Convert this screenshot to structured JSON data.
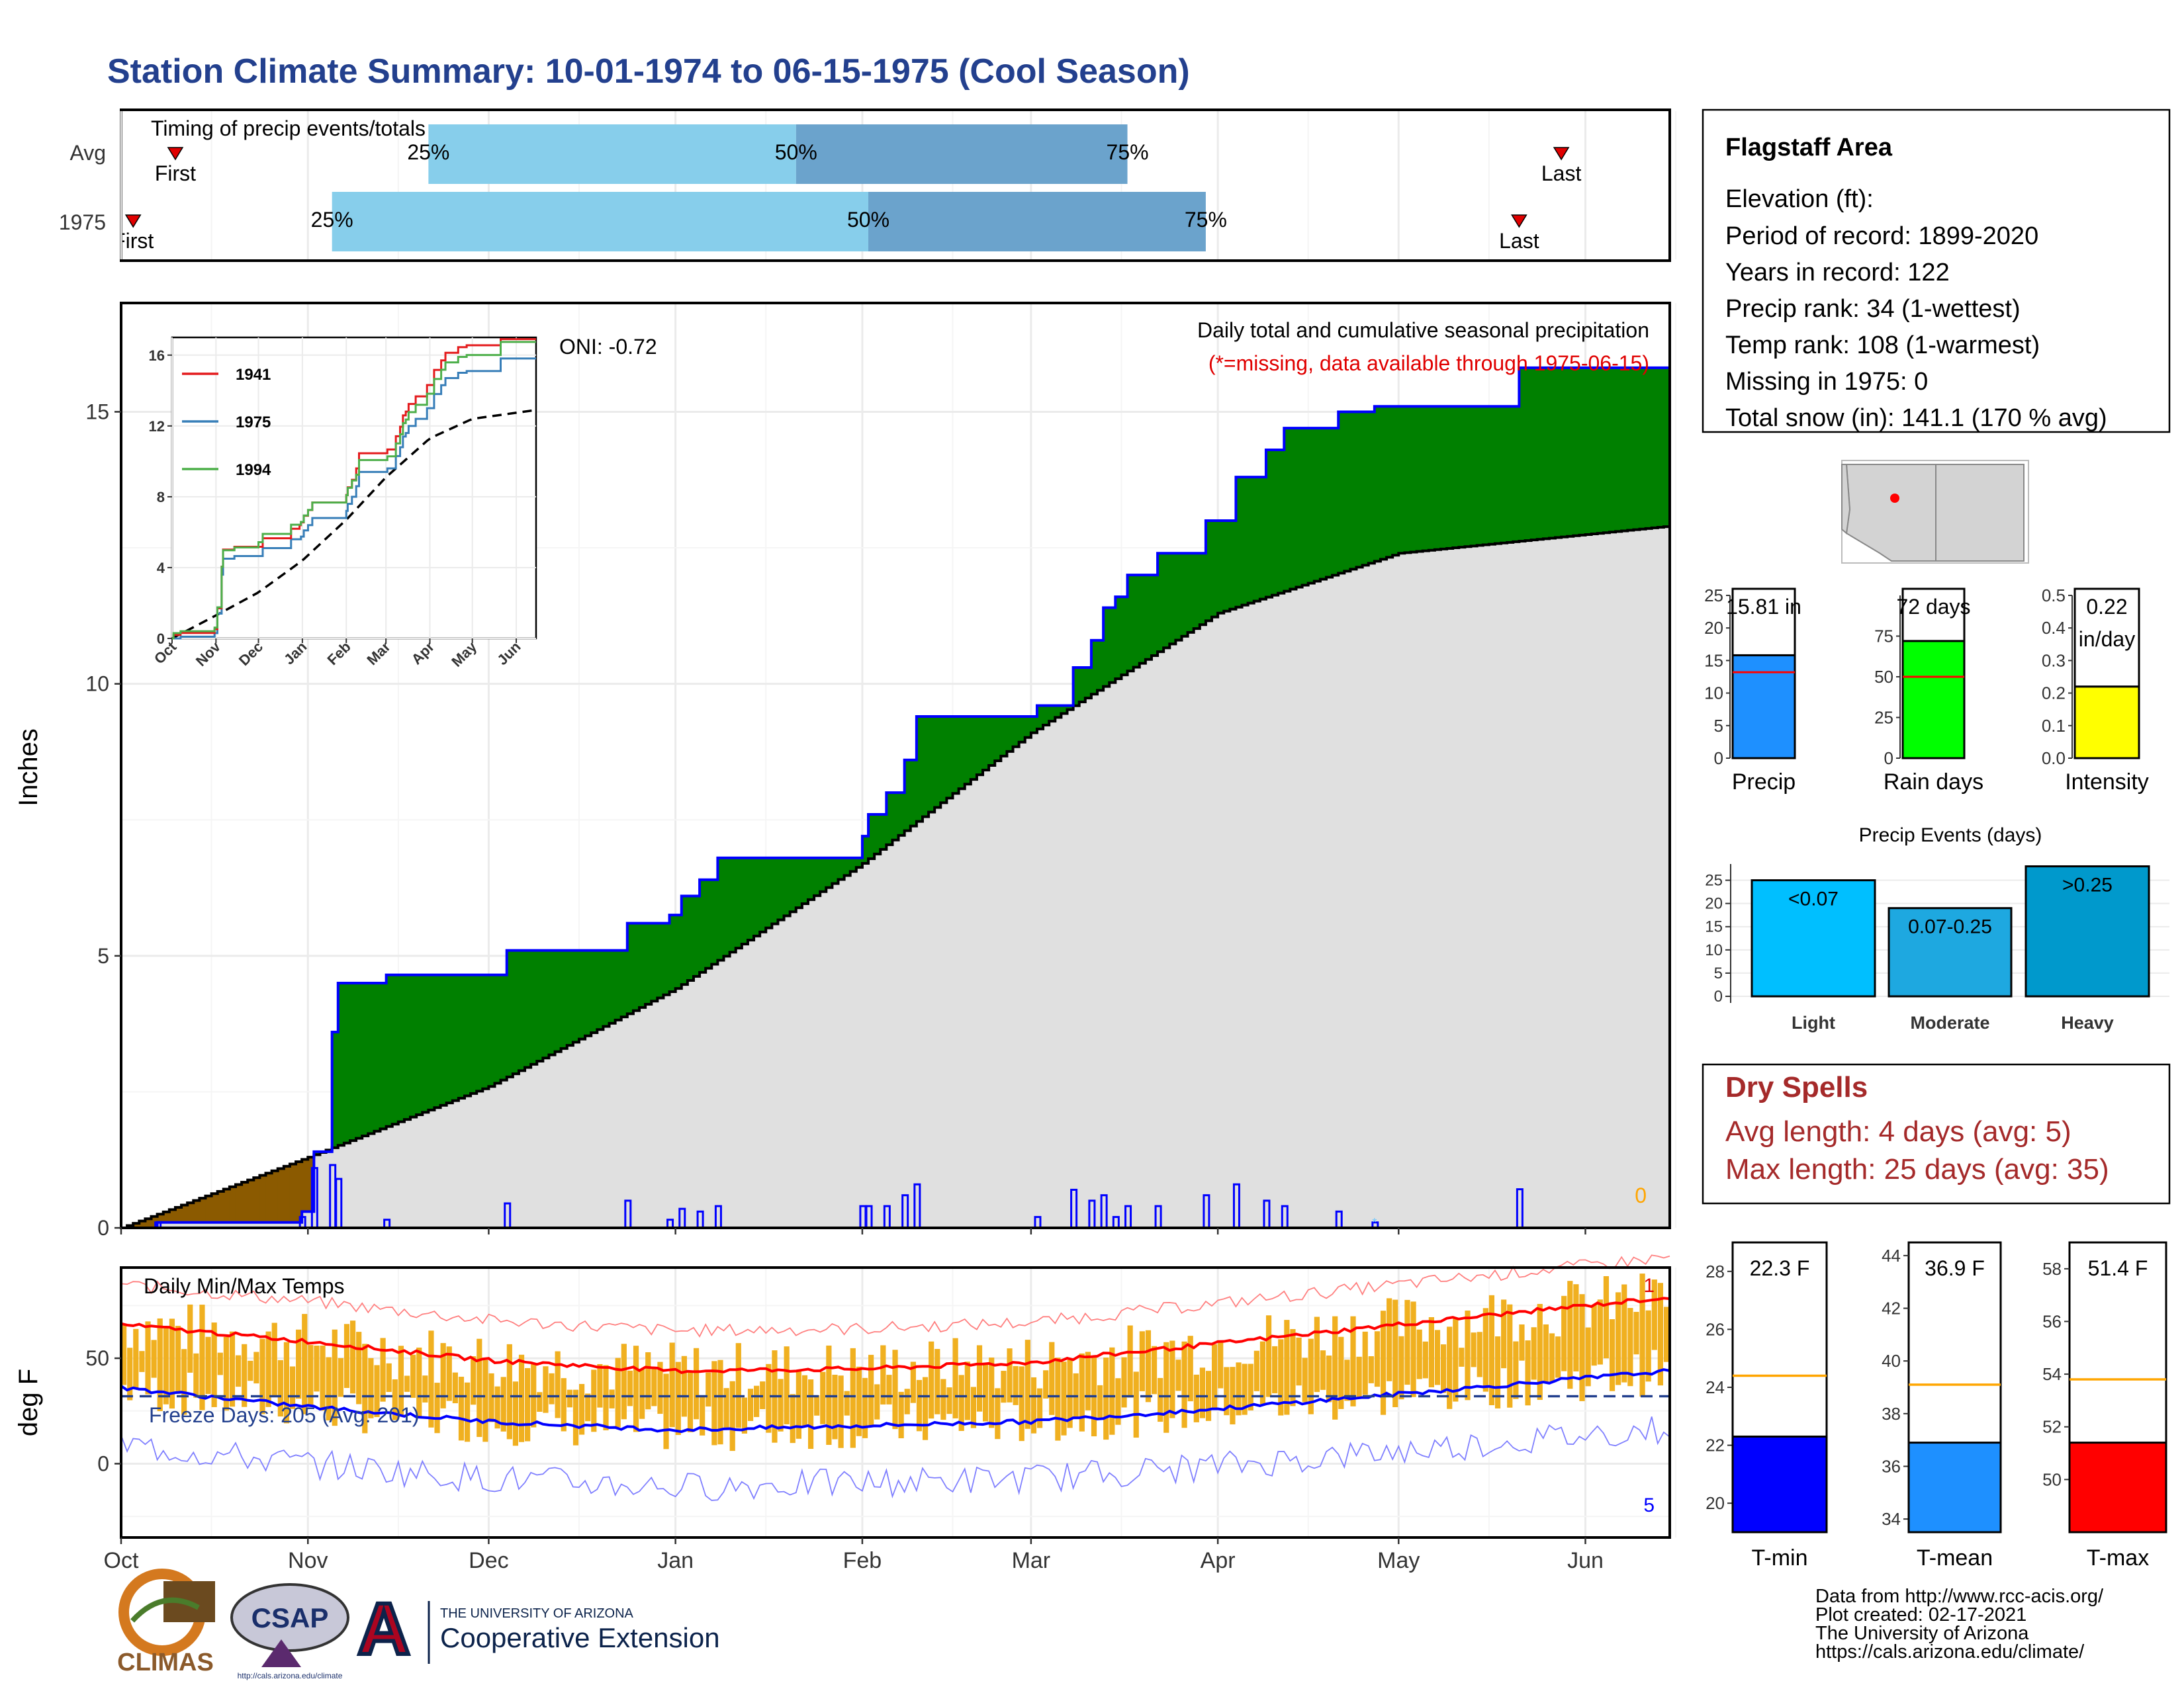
{
  "title": "Station Climate Summary: 10-01-1974 to 06-15-1975 (Cool Season)",
  "colors": {
    "title": "#23408e",
    "cum_fill": "#008000",
    "cum_line": "#0000ff",
    "avg_fill": "#e0e0e0",
    "deficit_fill": "#8b5a00",
    "p25": "#87ceeb",
    "p50": "#6ba3cc",
    "marker": "#e00000",
    "temp_bars": "#f0b020",
    "tmax_avg": "#ff0000",
    "tmin_avg": "#0000ff",
    "dry_spells": "#a52a2a"
  },
  "timing": {
    "label": "Timing of precip events/totals",
    "rows": [
      {
        "name": "Avg",
        "first_label": "First",
        "last_label": "Last",
        "first": "Oct 10",
        "p25": "Nov 21",
        "p50": "Jan 21",
        "p75": "Mar 17",
        "last": "May 28",
        "p25_label": "25%",
        "p50_label": "50%",
        "p75_label": "75%"
      },
      {
        "name": "1975",
        "first_label": "First",
        "last_label": "Last",
        "first": "Oct 3",
        "p25": "Nov 5",
        "p50": "Feb 2",
        "p75": "Mar 30",
        "last": "May 21",
        "p25_label": "25%",
        "p50_label": "50%",
        "p75_label": "75%"
      }
    ]
  },
  "main": {
    "ylabel": "Inches",
    "oni_label": "ONI: -0.72",
    "legend_title": "Daily total and cumulative seasonal precipitation",
    "missing_note": "(*=missing, data available through 1975-06-15)",
    "missing_count": "0",
    "y_ticks": [
      "0",
      "5",
      "10",
      "15"
    ]
  },
  "inset": {
    "y_ticks": [
      "0",
      "4",
      "8",
      "12",
      "16"
    ],
    "x_ticks": [
      "Oct",
      "Nov",
      "Dec",
      "Jan",
      "Feb",
      "Mar",
      "Apr",
      "May",
      "Jun"
    ],
    "legend": [
      {
        "name": "1941",
        "color": "#e41a1c"
      },
      {
        "name": "1975",
        "color": "#377eb8"
      },
      {
        "name": "1994",
        "color": "#4daf4a"
      }
    ]
  },
  "temps": {
    "ylabel": "deg F",
    "title": "Daily Min/Max Temps",
    "freeze_label": "Freeze Days: 205 (Avg: 201)",
    "y_ticks": [
      "0",
      "50"
    ],
    "record_high_count": "1",
    "record_low_count": "5"
  },
  "x_months": [
    "Oct",
    "Nov",
    "Dec",
    "Jan",
    "Feb",
    "Mar",
    "Apr",
    "May",
    "Jun"
  ],
  "info": {
    "station": "Flagstaff Area",
    "lines": [
      "Elevation (ft):",
      "Period of record: 1899-2020",
      "Years in record: 122",
      "Precip rank: 34 (1-wettest)",
      "Temp rank: 108 (1-warmest)",
      "Missing in 1975: 0",
      "Total snow (in): 141.1 (170 % avg)"
    ]
  },
  "mini_bars": [
    {
      "name": "Precip",
      "label": "15.81 in",
      "value": 15.81,
      "avg": 13.2,
      "ymax": 25,
      "ticks": [
        "0",
        "5",
        "10",
        "15",
        "20",
        "25"
      ],
      "color": "#1e90ff"
    },
    {
      "name": "Rain days",
      "label": "72 days",
      "value": 72,
      "avg": 50,
      "ymax": 100,
      "ticks": [
        "0",
        "25",
        "50",
        "75"
      ],
      "color": "#00ff00"
    },
    {
      "name": "Intensity",
      "label": "0.22",
      "label2": "in/day",
      "value": 0.22,
      "avg": 0.26,
      "ymax": 0.5,
      "ticks": [
        "0.0",
        "0.1",
        "0.2",
        "0.3",
        "0.4",
        "0.5"
      ],
      "color": "#ffff00"
    }
  ],
  "events": {
    "title": "Precip Events (days)",
    "ticks": [
      "0",
      "5",
      "10",
      "15",
      "20",
      "25"
    ],
    "bars": [
      {
        "name": "Light",
        "label": "<0.07",
        "value": 25,
        "color": "#00bfff"
      },
      {
        "name": "Moderate",
        "label": "0.07-0.25",
        "value": 19,
        "color": "#1ea8e0"
      },
      {
        "name": "Heavy",
        "label": ">0.25",
        "value": 28,
        "color": "#0099cc"
      }
    ]
  },
  "dry_spells": {
    "title": "Dry Spells",
    "line1": "Avg length: 4 days (avg: 5)",
    "line2": "Max length: 25 days (avg: 35)"
  },
  "temp_bars": [
    {
      "name": "T-min",
      "label": "22.3 F",
      "value": 22.3,
      "avg": 24.4,
      "ymin": 19,
      "ymax": 29,
      "ticks": [
        "20",
        "22",
        "24",
        "26",
        "28"
      ],
      "color": "#0000ff"
    },
    {
      "name": "T-mean",
      "label": "36.9 F",
      "value": 36.9,
      "avg": 39.1,
      "ymin": 33.5,
      "ymax": 44.5,
      "ticks": [
        "34",
        "36",
        "38",
        "40",
        "42",
        "44"
      ],
      "color": "#1e90ff"
    },
    {
      "name": "T-max",
      "label": "51.4 F",
      "value": 51.4,
      "avg": 53.8,
      "ymin": 48,
      "ymax": 59,
      "ticks": [
        "50",
        "52",
        "54",
        "56",
        "58"
      ],
      "color": "#ff0000"
    }
  ],
  "footer": {
    "lines": [
      "Data from http://www.rcc-acis.org/",
      "Plot created: 02-17-2021",
      "The University of Arizona",
      "https://cals.arizona.edu/climate/"
    ],
    "logos": {
      "climas": "CLIMAS",
      "csap": "CSAP",
      "csap_url": "http://cals.arizona.edu/climate",
      "ua_letter": "A",
      "ua_small": "THE UNIVERSITY OF ARIZONA",
      "ua_big": "Cooperative Extension"
    }
  },
  "chart_data": {
    "type": "area",
    "title": "Station Climate Summary: 10-01-1974 to 06-15-1975 (Cool Season)",
    "ylabel": "Inches",
    "ylim": [
      0,
      17
    ],
    "x_range": [
      "1974-10-01",
      "1975-06-15"
    ],
    "series": [
      {
        "name": "1975",
        "x": [
          "1974-10-01",
          "1974-10-07",
          "1974-10-31",
          "1974-11-02",
          "1974-11-05",
          "1974-11-06",
          "1974-11-09",
          "1974-11-14",
          "1974-12-03",
          "1974-12-04",
          "1974-12-21",
          "1974-12-24",
          "1974-12-31",
          "1975-01-02",
          "1975-01-05",
          "1975-01-08",
          "1975-01-15",
          "1975-02-01",
          "1975-02-02",
          "1975-02-05",
          "1975-02-08",
          "1975-02-10",
          "1975-02-15",
          "1975-02-21",
          "1975-03-02",
          "1975-03-08",
          "1975-03-11",
          "1975-03-13",
          "1975-03-15",
          "1975-03-17",
          "1975-03-22",
          "1975-03-30",
          "1975-04-04",
          "1975-04-09",
          "1975-04-12",
          "1975-04-21",
          "1975-04-27",
          "1975-05-06",
          "1975-05-21",
          "1975-06-15"
        ],
        "values": [
          0,
          0.1,
          0.3,
          1.4,
          3.6,
          4.5,
          4.5,
          4.65,
          4.65,
          5.1,
          5.1,
          5.6,
          5.75,
          6.1,
          6.4,
          6.8,
          6.8,
          7.2,
          7.6,
          8.0,
          8.6,
          9.4,
          9.4,
          9.4,
          9.6,
          10.3,
          10.8,
          11.4,
          11.6,
          12.0,
          12.4,
          13.0,
          13.8,
          14.3,
          14.7,
          15.0,
          15.1,
          15.1,
          15.81,
          15.81
        ]
      },
      {
        "name": "Avg",
        "x": [
          "1974-10-01",
          "1974-11-01",
          "1974-12-01",
          "1975-01-01",
          "1975-02-01",
          "1975-03-01",
          "1975-04-01",
          "1975-05-01",
          "1975-06-15"
        ],
        "values": [
          0,
          1.3,
          2.6,
          4.4,
          6.7,
          9.1,
          11.3,
          12.4,
          12.9
        ]
      }
    ],
    "temps": {
      "ylabel": "deg F",
      "tmax_avg": {
        "x": [
          "Oct 1",
          "Nov 1",
          "Dec 1",
          "Jan 1",
          "Feb 1",
          "Mar 1",
          "Apr 1",
          "May 1",
          "Jun 15"
        ],
        "values": [
          66,
          58,
          49,
          44,
          45,
          48,
          57,
          66,
          79
        ]
      },
      "tmin_avg": {
        "x": [
          "Oct 1",
          "Nov 1",
          "Dec 1",
          "Jan 1",
          "Feb 1",
          "Mar 1",
          "Apr 1",
          "May 1",
          "Jun 15"
        ],
        "values": [
          36,
          27,
          20,
          16,
          18,
          20,
          26,
          33,
          44
        ]
      },
      "freeze_threshold": 32
    }
  }
}
